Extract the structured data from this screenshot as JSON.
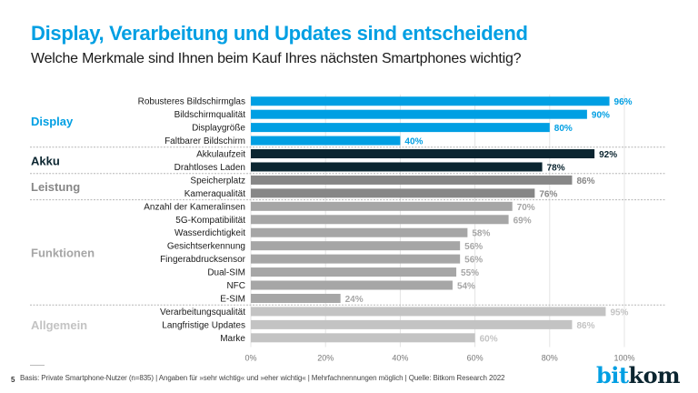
{
  "header": {
    "title": "Display, Verarbeitung und Updates sind entscheidend",
    "subtitle": "Welche Merkmale sind Ihnen beim Kauf Ihres nächsten Smartphones wichtig?"
  },
  "footer": {
    "page_number": "5",
    "note": "Basis: Private Smartphone-Nutzer (n=835) | Angaben für »sehr wichtig« und »eher wichtig« | Mehrfachnennungen möglich | Quelle: Bitkom Research 2022",
    "logo_part1": "bit",
    "logo_part2": "kom"
  },
  "chart_data": {
    "type": "bar",
    "orientation": "horizontal",
    "title": "Display, Verarbeitung und Updates sind entscheidend",
    "subtitle": "Welche Merkmale sind Ihnen beim Kauf Ihres nächsten Smartphones wichtig?",
    "xlabel": "",
    "ylabel": "",
    "xlim": [
      0,
      100
    ],
    "x_ticks": [
      "0%",
      "20%",
      "40%",
      "60%",
      "80%",
      "100%"
    ],
    "grid": true,
    "unit": "%",
    "groups": [
      {
        "name": "Display",
        "color": "#009fe3",
        "label_color": "#009fe3",
        "categories": [
          "Robusteres Bildschirmglas",
          "Bildschirmqualität",
          "Displaygröße",
          "Faltbarer Bildschirm"
        ],
        "values": [
          96,
          90,
          80,
          40
        ]
      },
      {
        "name": "Akku",
        "color": "#0b2530",
        "label_color": "#0b2530",
        "categories": [
          "Akkulaufzeit",
          "Drahtloses Laden"
        ],
        "values": [
          92,
          78
        ]
      },
      {
        "name": "Leistung",
        "color": "#878787",
        "label_color": "#878787",
        "categories": [
          "Speicherplatz",
          "Kameraqualität"
        ],
        "values": [
          86,
          76
        ]
      },
      {
        "name": "Funktionen",
        "color": "#a6a6a6",
        "label_color": "#a6a6a6",
        "categories": [
          "Anzahl der Kameralinsen",
          "5G-Kompatibilität",
          "Wasserdichtigkeit",
          "Gesichtserkennung",
          "Fingerabdrucksensor",
          "Dual-SIM",
          "NFC",
          "E-SIM"
        ],
        "values": [
          70,
          69,
          58,
          56,
          56,
          55,
          54,
          24
        ]
      },
      {
        "name": "Allgemein",
        "color": "#c3c3c3",
        "label_color": "#c3c3c3",
        "categories": [
          "Verarbeitungsqualität",
          "Langfristige Updates",
          "Marke"
        ],
        "values": [
          95,
          86,
          60
        ]
      }
    ]
  }
}
